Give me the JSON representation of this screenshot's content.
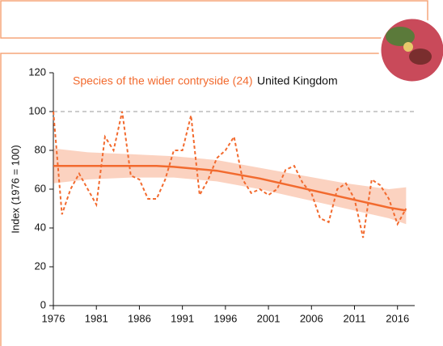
{
  "chart_data": {
    "type": "line",
    "annotations": [
      "Species of the wider contryside (24)",
      "United Kingdom"
    ],
    "y_label": "Index (1976 = 100)",
    "xlim": [
      1976,
      2018
    ],
    "ylim": [
      0,
      120
    ],
    "xticks": [
      1976,
      1981,
      1986,
      1991,
      1996,
      2001,
      2006,
      2011,
      2016
    ],
    "yticks": [
      0,
      20,
      40,
      60,
      80,
      100,
      120
    ],
    "reference": 100,
    "color": "#f26a2e",
    "x": [
      1976,
      1977,
      1978,
      1979,
      1980,
      1981,
      1982,
      1983,
      1984,
      1985,
      1986,
      1987,
      1988,
      1989,
      1990,
      1991,
      1992,
      1993,
      1994,
      1995,
      1996,
      1997,
      1998,
      1999,
      2000,
      2001,
      2002,
      2003,
      2004,
      2005,
      2006,
      2007,
      2008,
      2009,
      2010,
      2011,
      2012,
      2013,
      2014,
      2015,
      2016,
      2017
    ],
    "values": [
      100,
      47,
      60,
      68,
      60,
      52,
      87,
      80,
      100,
      67,
      65,
      55,
      55,
      65,
      80,
      80,
      98,
      57,
      65,
      76,
      80,
      87,
      65,
      58,
      60,
      57,
      60,
      70,
      72,
      63,
      58,
      45,
      43,
      60,
      63,
      55,
      35,
      65,
      62,
      55,
      42,
      50
    ],
    "trend_x": [
      1976,
      1980,
      1985,
      1988,
      1990,
      1995,
      2000,
      2005,
      2010,
      2015,
      2017
    ],
    "trend": [
      72,
      72,
      72,
      72,
      71.5,
      69.5,
      65.5,
      60.5,
      55.5,
      50.5,
      49
    ],
    "band_x": [
      1976,
      1980,
      1985,
      1990,
      1995,
      2000,
      2005,
      2010,
      2015,
      2017
    ],
    "band_upper": [
      81,
      79,
      78,
      77,
      75,
      71,
      67,
      63,
      60,
      61
    ],
    "band_lower": [
      63,
      65,
      66,
      66,
      64,
      60,
      55,
      50,
      45,
      42
    ]
  }
}
